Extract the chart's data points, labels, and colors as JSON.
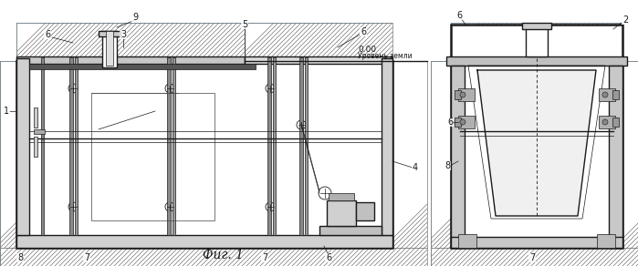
{
  "fig_width": 6.99,
  "fig_height": 2.92,
  "dpi": 100,
  "bg_color": "#ffffff",
  "lc": "#1a1a1a",
  "soil_hatch_color": "#555555",
  "caption": "Фиг. 1",
  "caption_fontsize": 10,
  "label_fontsize": 7,
  "elev_text": "0.00",
  "elev_subtext": "Уровень земли"
}
